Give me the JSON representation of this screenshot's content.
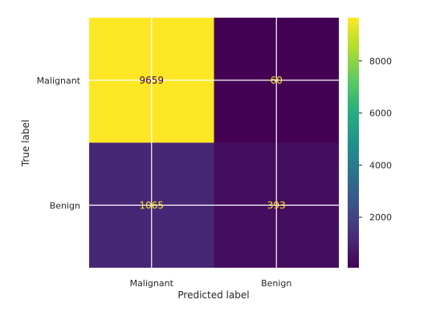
{
  "chart_data": {
    "type": "heatmap",
    "title": "",
    "xlabel": "Predicted label",
    "ylabel": "True label",
    "x_categories": [
      "Malignant",
      "Benign"
    ],
    "y_categories": [
      "Malignant",
      "Benign"
    ],
    "values": [
      [
        9659,
        60
      ],
      [
        1065,
        393
      ]
    ],
    "value_labels": [
      [
        "9659",
        "60"
      ],
      [
        "1065",
        "393"
      ]
    ],
    "colormap": "viridis",
    "colorbar": {
      "range": [
        60,
        9659
      ],
      "ticks": [
        2000,
        4000,
        6000,
        8000
      ],
      "tick_labels": [
        "2000",
        "4000",
        "6000",
        "8000"
      ]
    },
    "grid": true,
    "colors": {
      "cell_dark": "#440154",
      "cell_bright": "#fde725",
      "text_on_dark": "#fde725",
      "text_on_bright": "#440154",
      "grid": "#ffffff"
    }
  }
}
